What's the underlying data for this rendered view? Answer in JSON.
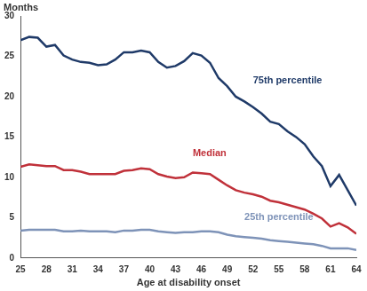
{
  "chart_data": {
    "type": "line",
    "ylabel": "Months",
    "xlabel": "Age at disability onset",
    "x": [
      25,
      26,
      27,
      28,
      29,
      30,
      31,
      32,
      33,
      34,
      35,
      36,
      37,
      38,
      39,
      40,
      41,
      42,
      43,
      44,
      45,
      46,
      47,
      48,
      49,
      50,
      51,
      52,
      53,
      54,
      55,
      56,
      57,
      58,
      59,
      60,
      61,
      62,
      63,
      64
    ],
    "series": [
      {
        "name": "75th percentile",
        "color": "#1f3a68",
        "values": [
          27.0,
          27.4,
          27.3,
          26.2,
          26.4,
          25.1,
          24.6,
          24.3,
          24.2,
          23.9,
          24.0,
          24.6,
          25.5,
          25.5,
          25.7,
          25.5,
          24.3,
          23.6,
          23.8,
          24.4,
          25.4,
          25.1,
          24.2,
          22.3,
          21.3,
          20.0,
          19.4,
          18.7,
          17.9,
          16.9,
          16.6,
          15.7,
          15.0,
          14.1,
          12.6,
          11.4,
          8.9,
          10.3,
          8.4,
          6.5
        ]
      },
      {
        "name": "Median",
        "color": "#c0313a",
        "values": [
          11.3,
          11.6,
          11.5,
          11.4,
          11.4,
          10.9,
          10.9,
          10.7,
          10.4,
          10.4,
          10.4,
          10.4,
          10.8,
          10.9,
          11.1,
          11.0,
          10.4,
          10.1,
          9.9,
          10.0,
          10.6,
          10.5,
          10.4,
          9.7,
          9.0,
          8.4,
          8.1,
          7.9,
          7.6,
          7.1,
          6.9,
          6.6,
          6.3,
          6.0,
          5.5,
          4.9,
          3.9,
          4.3,
          3.8,
          3.0
        ]
      },
      {
        "name": "25th percentile",
        "color": "#7e93b8",
        "values": [
          3.4,
          3.5,
          3.5,
          3.5,
          3.5,
          3.3,
          3.3,
          3.4,
          3.3,
          3.3,
          3.3,
          3.2,
          3.4,
          3.4,
          3.5,
          3.5,
          3.3,
          3.2,
          3.1,
          3.2,
          3.2,
          3.3,
          3.3,
          3.2,
          2.9,
          2.7,
          2.6,
          2.5,
          2.4,
          2.2,
          2.1,
          2.0,
          1.9,
          1.8,
          1.7,
          1.5,
          1.2,
          1.2,
          1.2,
          1.0
        ]
      }
    ],
    "annotations": [
      {
        "text": "75th percentile",
        "x": 52,
        "y": 22,
        "color": "#1f3a68"
      },
      {
        "text": "Median",
        "x": 45,
        "y": 13,
        "color": "#c0313a"
      },
      {
        "text": "25th percentile",
        "x": 51,
        "y": 5,
        "color": "#7e93b8"
      }
    ],
    "xlim": [
      25,
      64
    ],
    "xticks": [
      25,
      28,
      31,
      34,
      37,
      40,
      43,
      46,
      49,
      52,
      55,
      58,
      61,
      64
    ],
    "ylim": [
      0,
      30
    ],
    "yticks": [
      0,
      5,
      10,
      15,
      20,
      25,
      30
    ],
    "grid": false,
    "legend": "none"
  }
}
